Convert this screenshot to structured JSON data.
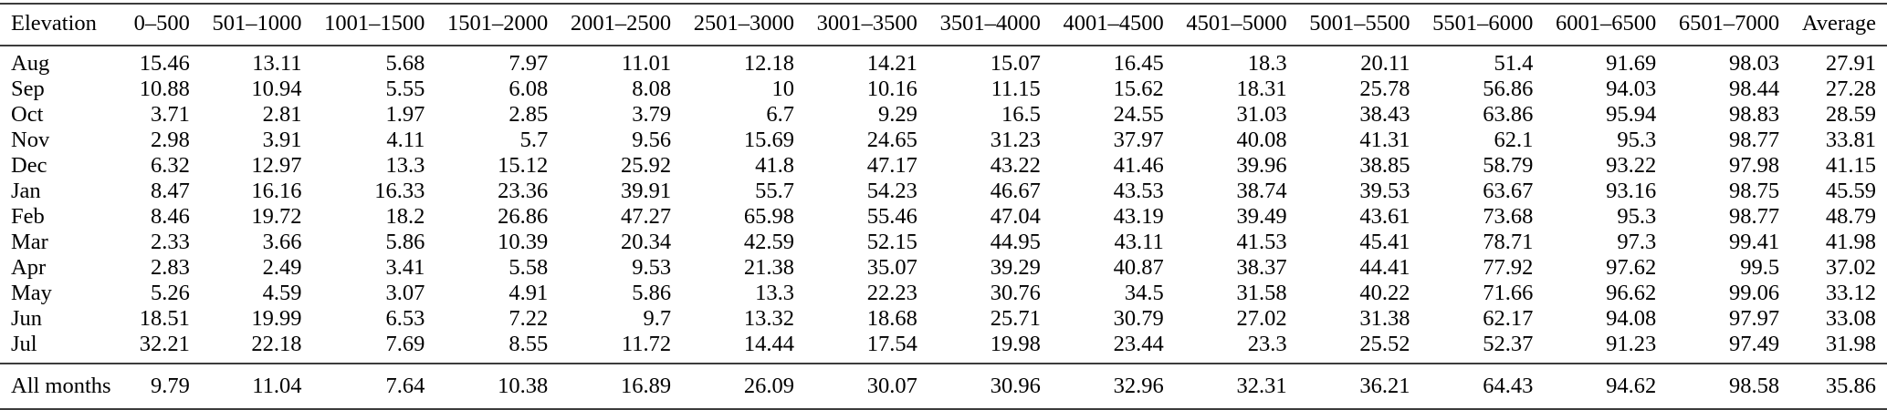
{
  "table": {
    "columns": [
      "Elevation",
      "0–500",
      "501–1000",
      "1001–1500",
      "1501–2000",
      "2001–2500",
      "2501–3000",
      "3001–3500",
      "3501–4000",
      "4001–4500",
      "4501–5000",
      "5001–5500",
      "5501–6000",
      "6001–6500",
      "6501–7000",
      "Average"
    ],
    "rows": [
      {
        "label": "Aug",
        "values": [
          "15.46",
          "13.11",
          "5.68",
          "7.97",
          "11.01",
          "12.18",
          "14.21",
          "15.07",
          "16.45",
          "18.3",
          "20.11",
          "51.4",
          "91.69",
          "98.03",
          "27.91"
        ]
      },
      {
        "label": "Sep",
        "values": [
          "10.88",
          "10.94",
          "5.55",
          "6.08",
          "8.08",
          "10",
          "10.16",
          "11.15",
          "15.62",
          "18.31",
          "25.78",
          "56.86",
          "94.03",
          "98.44",
          "27.28"
        ]
      },
      {
        "label": "Oct",
        "values": [
          "3.71",
          "2.81",
          "1.97",
          "2.85",
          "3.79",
          "6.7",
          "9.29",
          "16.5",
          "24.55",
          "31.03",
          "38.43",
          "63.86",
          "95.94",
          "98.83",
          "28.59"
        ]
      },
      {
        "label": "Nov",
        "values": [
          "2.98",
          "3.91",
          "4.11",
          "5.7",
          "9.56",
          "15.69",
          "24.65",
          "31.23",
          "37.97",
          "40.08",
          "41.31",
          "62.1",
          "95.3",
          "98.77",
          "33.81"
        ]
      },
      {
        "label": "Dec",
        "values": [
          "6.32",
          "12.97",
          "13.3",
          "15.12",
          "25.92",
          "41.8",
          "47.17",
          "43.22",
          "41.46",
          "39.96",
          "38.85",
          "58.79",
          "93.22",
          "97.98",
          "41.15"
        ]
      },
      {
        "label": "Jan",
        "values": [
          "8.47",
          "16.16",
          "16.33",
          "23.36",
          "39.91",
          "55.7",
          "54.23",
          "46.67",
          "43.53",
          "38.74",
          "39.53",
          "63.67",
          "93.16",
          "98.75",
          "45.59"
        ]
      },
      {
        "label": "Feb",
        "values": [
          "8.46",
          "19.72",
          "18.2",
          "26.86",
          "47.27",
          "65.98",
          "55.46",
          "47.04",
          "43.19",
          "39.49",
          "43.61",
          "73.68",
          "95.3",
          "98.77",
          "48.79"
        ]
      },
      {
        "label": "Mar",
        "values": [
          "2.33",
          "3.66",
          "5.86",
          "10.39",
          "20.34",
          "42.59",
          "52.15",
          "44.95",
          "43.11",
          "41.53",
          "45.41",
          "78.71",
          "97.3",
          "99.41",
          "41.98"
        ]
      },
      {
        "label": "Apr",
        "values": [
          "2.83",
          "2.49",
          "3.41",
          "5.58",
          "9.53",
          "21.38",
          "35.07",
          "39.29",
          "40.87",
          "38.37",
          "44.41",
          "77.92",
          "97.62",
          "99.5",
          "37.02"
        ]
      },
      {
        "label": "May",
        "values": [
          "5.26",
          "4.59",
          "3.07",
          "4.91",
          "5.86",
          "13.3",
          "22.23",
          "30.76",
          "34.5",
          "31.58",
          "40.22",
          "71.66",
          "96.62",
          "99.06",
          "33.12"
        ]
      },
      {
        "label": "Jun",
        "values": [
          "18.51",
          "19.99",
          "6.53",
          "7.22",
          "9.7",
          "13.32",
          "18.68",
          "25.71",
          "30.79",
          "27.02",
          "31.38",
          "62.17",
          "94.08",
          "97.97",
          "33.08"
        ]
      },
      {
        "label": "Jul",
        "values": [
          "32.21",
          "22.18",
          "7.69",
          "8.55",
          "11.72",
          "14.44",
          "17.54",
          "19.98",
          "23.44",
          "23.3",
          "25.52",
          "52.37",
          "91.23",
          "97.49",
          "31.98"
        ]
      }
    ],
    "footer": {
      "label": "All months",
      "values": [
        "9.79",
        "11.04",
        "7.64",
        "10.38",
        "16.89",
        "26.09",
        "30.07",
        "30.96",
        "32.96",
        "32.31",
        "36.21",
        "64.43",
        "94.62",
        "98.58",
        "35.86"
      ]
    }
  },
  "colors": {
    "rule": "#3c3c3c",
    "text": "#000000",
    "background": "#ffffff"
  }
}
